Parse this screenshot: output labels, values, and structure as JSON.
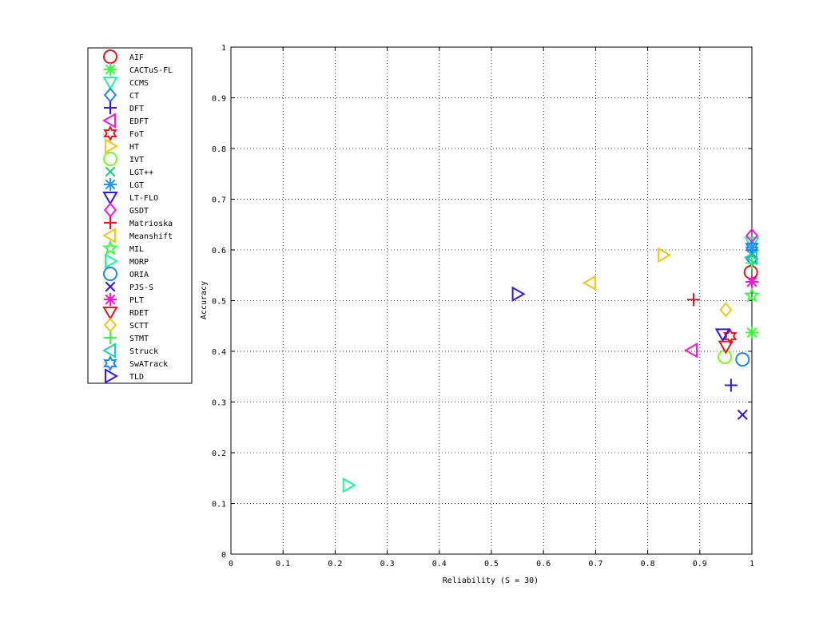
{
  "chart_data": {
    "type": "scatter",
    "xlabel": "Reliability (S = 30)",
    "ylabel": "Accuracy",
    "xlim": [
      0,
      1
    ],
    "ylim": [
      0,
      1
    ],
    "xticks": [
      0,
      0.1,
      0.2,
      0.3,
      0.4,
      0.5,
      0.6,
      0.7,
      0.8,
      0.9,
      1
    ],
    "yticks": [
      0,
      0.1,
      0.2,
      0.3,
      0.4,
      0.5,
      0.6,
      0.7,
      0.8,
      0.9,
      1
    ],
    "xtick_labels": [
      "0",
      "0.1",
      "0.2",
      "0.3",
      "0.4",
      "0.5",
      "0.6",
      "0.7",
      "0.8",
      "0.9",
      "1"
    ],
    "ytick_labels": [
      "0",
      "0.1",
      "0.2",
      "0.3",
      "0.4",
      "0.5",
      "0.6",
      "0.7",
      "0.8",
      "0.9",
      "1"
    ],
    "grid": true,
    "legend_placement": "left of plot, top",
    "series": [
      {
        "name": "AIF",
        "marker": "circle",
        "color": "#e8141e",
        "x": 0.998,
        "y": 0.556
      },
      {
        "name": "CACTuS-FL",
        "marker": "asterisk",
        "color": "#3cff3c",
        "x": 1.0,
        "y": 0.437
      },
      {
        "name": "CCMS",
        "marker": "triangle-down",
        "color": "#14ff9b",
        "x": 1.0,
        "y": 0.615
      },
      {
        "name": "CT",
        "marker": "diamond",
        "color": "#1e82ff",
        "x": 1.0,
        "y": 0.582
      },
      {
        "name": "DFT",
        "marker": "plus",
        "color": "#3214ff",
        "x": 0.96,
        "y": 0.333
      },
      {
        "name": "EDFT",
        "marker": "triangle-left",
        "color": "#ff14dc",
        "x": 0.885,
        "y": 0.402
      },
      {
        "name": "FoT",
        "marker": "hexagram",
        "color": "#e8141e",
        "x": 0.958,
        "y": 0.43
      },
      {
        "name": "HT",
        "marker": "triangle-right",
        "color": "#f0c814",
        "x": 0.83,
        "y": 0.59
      },
      {
        "name": "IVT",
        "marker": "circle",
        "color": "#78ff1e",
        "x": 0.948,
        "y": 0.389
      },
      {
        "name": "LGT++",
        "marker": "x",
        "color": "#14d278",
        "x": 1.0,
        "y": 0.59
      },
      {
        "name": "LGT",
        "marker": "asterisk",
        "color": "#1e9bff",
        "x": 1.0,
        "y": 0.605
      },
      {
        "name": "LT-FLO",
        "marker": "triangle-down",
        "color": "#3214ff",
        "x": 0.944,
        "y": 0.434
      },
      {
        "name": "GSDT",
        "marker": "diamond",
        "color": "#ff14dc",
        "x": 1.0,
        "y": 0.628
      },
      {
        "name": "Matrioska",
        "marker": "plus",
        "color": "#e8141e",
        "x": 0.888,
        "y": 0.502
      },
      {
        "name": "Meanshift",
        "marker": "triangle-left",
        "color": "#f0c814",
        "x": 0.69,
        "y": 0.535
      },
      {
        "name": "MIL",
        "marker": "pentagram",
        "color": "#3cff3c",
        "x": 1.0,
        "y": 0.51
      },
      {
        "name": "MORP",
        "marker": "triangle-right",
        "color": "#14ff9b",
        "x": 0.225,
        "y": 0.136
      },
      {
        "name": "ORIA",
        "marker": "circle",
        "color": "#1e82ff",
        "x": 0.982,
        "y": 0.384
      },
      {
        "name": "PJS-S",
        "marker": "x",
        "color": "#3214ff",
        "x": 0.982,
        "y": 0.275
      },
      {
        "name": "PLT",
        "marker": "asterisk",
        "color": "#ff14dc",
        "x": 1.0,
        "y": 0.537
      },
      {
        "name": "RDET",
        "marker": "triangle-down",
        "color": "#e8141e",
        "x": 0.95,
        "y": 0.41
      },
      {
        "name": "SCTT",
        "marker": "diamond",
        "color": "#f0c814",
        "x": 0.95,
        "y": 0.482
      },
      {
        "name": "STMT",
        "marker": "plus",
        "color": "#3cff3c",
        "x": 1.0,
        "y": 0.574
      },
      {
        "name": "Struck",
        "marker": "triangle-left",
        "color": "#14d2b4",
        "x": 1.0,
        "y": 0.585
      },
      {
        "name": "SwATrack",
        "marker": "hexagram",
        "color": "#1e82ff",
        "x": 1.0,
        "y": 0.606
      },
      {
        "name": "TLD",
        "marker": "triangle-right",
        "color": "#3214ff",
        "x": 0.55,
        "y": 0.513
      }
    ]
  }
}
